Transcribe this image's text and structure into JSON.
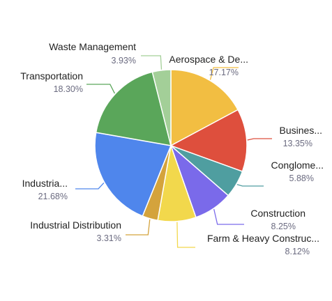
{
  "chart_data": {
    "type": "pie",
    "title": "",
    "slices": [
      {
        "label": "Aerospace & De...",
        "percent_text": "17.17%",
        "value": 17.17,
        "color": "#F2BE42"
      },
      {
        "label": "Busines...",
        "percent_text": "13.35%",
        "value": 13.35,
        "color": "#DE4F3D"
      },
      {
        "label": "Conglome...",
        "percent_text": "5.88%",
        "value": 5.88,
        "color": "#4F9EA0"
      },
      {
        "label": "Construction",
        "percent_text": "8.25%",
        "value": 8.25,
        "color": "#7A6AEA"
      },
      {
        "label": "Farm & Heavy Construc...",
        "percent_text": "8.12%",
        "value": 8.12,
        "color": "#F2D84C"
      },
      {
        "label": "Industrial Distribution",
        "percent_text": "3.31%",
        "value": 3.31,
        "color": "#D4A33C"
      },
      {
        "label": "Industria...",
        "percent_text": "21.68%",
        "value": 21.68,
        "color": "#4F86EC"
      },
      {
        "label": "Transportation",
        "percent_text": "18.30%",
        "value": 18.3,
        "color": "#5AA65A"
      },
      {
        "label": "Waste Management",
        "percent_text": "3.93%",
        "value": 3.93,
        "color": "#A3CF98"
      }
    ]
  }
}
